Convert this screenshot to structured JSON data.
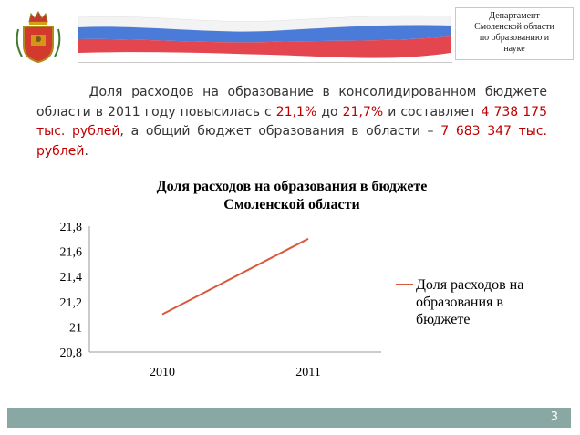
{
  "header": {
    "department_lines": [
      "Департамент",
      "Смоленской области",
      "по образованию и",
      "науке"
    ]
  },
  "summary": {
    "t1": "Доля расходов на образование в консолидированном бюджете области в 2011 году повысилась с ",
    "v1": "21,1%",
    "t2": " до ",
    "v2": "21,7%",
    "t3": " и составляет ",
    "v3": "4 738 175 тыс. рублей",
    "t4": ", а общий бюджет образования в области – ",
    "v4": "7 683 347 тыс. рублей",
    "t5": "."
  },
  "chart_data": {
    "type": "line",
    "title_lines": [
      "Доля расходов на образования в бюджете",
      "Смоленской области"
    ],
    "categories": [
      "2010",
      "2011"
    ],
    "series": [
      {
        "name": "Доля расходов на образования в бюджете",
        "values": [
          21.1,
          21.7
        ],
        "color": "#d9593a"
      }
    ],
    "y_ticks": [
      "21,8",
      "21,6",
      "21,4",
      "21,2",
      "21",
      "20,8"
    ],
    "ylim": [
      20.8,
      21.8
    ],
    "grid": false,
    "legend_lines": [
      "Доля расходов на",
      "образования в",
      "бюджете"
    ],
    "legend_position": "right"
  },
  "footer": {
    "page_number": "3",
    "bar_color": "#8aa8a3"
  }
}
